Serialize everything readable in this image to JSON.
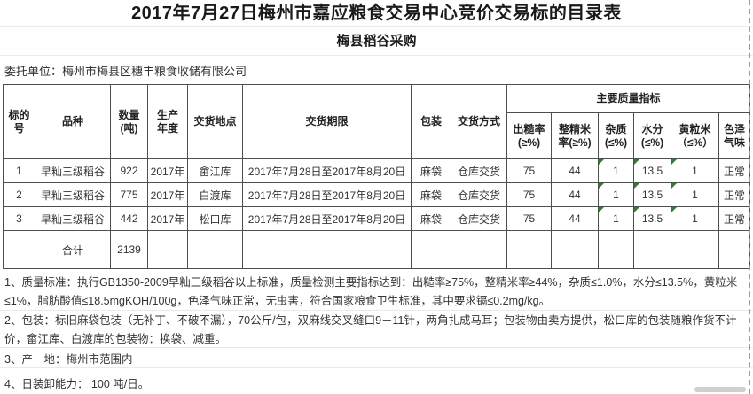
{
  "page": {
    "title": "2017年7月27日梅州市嘉应粮食交易中心竞价交易标的目录表",
    "subtitle": "梅县稻谷采购",
    "consignor": "委托单位：梅州市梅县区穗丰粮食收储有限公司"
  },
  "colors": {
    "table_border": "#4f4f4f",
    "flag_green": "#2e7d32",
    "faint_line": "#e9e9ee",
    "page_break_dash": "#9a9a9a",
    "scroll_thumb": "#cfcfcf"
  },
  "table": {
    "headers": {
      "bid_no": "标的\n号",
      "variety": "品种",
      "quantity": "数量\n(吨)",
      "year": "生产\n年度",
      "location": "交货地点",
      "period": "交货期限",
      "packaging": "包装",
      "delivery": "交货方式",
      "quality_group": "主要质量指标",
      "quality": [
        "出糙率\n(≥%)",
        "整精米\n率(≥%)",
        "杂质\n(≤%)",
        "水分\n(≤%)",
        "黄粒米\n（≤%）",
        "色泽\n气味"
      ]
    },
    "flag_cols": [
      10,
      11,
      12
    ],
    "rows": [
      {
        "c": [
          "1",
          "早籼三级稻谷",
          "922",
          "2017年",
          "畲江库",
          "2017年7月28日至2017年8月20日",
          "麻袋",
          "仓库交货",
          "75",
          "44",
          "1",
          "13.5",
          "1",
          "正常"
        ]
      },
      {
        "c": [
          "2",
          "早籼三级稻谷",
          "775",
          "2017年",
          "白渡库",
          "2017年7月28日至2017年8月20日",
          "麻袋",
          "仓库交货",
          "75",
          "44",
          "1",
          "13.5",
          "1",
          "正常"
        ]
      },
      {
        "c": [
          "3",
          "早籼三级稻谷",
          "442",
          "2017年",
          "松口库",
          "2017年7月28日至2017年8月20日",
          "麻袋",
          "仓库交货",
          "75",
          "44",
          "1",
          "13.5",
          "1",
          "正常"
        ]
      }
    ],
    "total": {
      "label": "合计",
      "quantity": "2139"
    }
  },
  "notes": [
    "1、质量标准：执行GB1350-2009早籼三级稻谷以上标准，质量检测主要指标达到：出糙率≥75%，整精米率≥44%，杂质≤1.0%，水分≤13.5%，黄粒米≤1%，脂肪酸值≤18.5mgKOH/100g，色泽气味正常，无虫害，符合国家粮食卫生标准，其中要求镉≤0.2mg/kg。",
    "2、包装：标旧麻袋包装（无补丁、不破不漏），70公斤/包，双麻线交叉缝口9－11针，两角扎成马耳；包装物由卖方提供，松口库的包装随粮作货不计价，畲江库、白渡库的包装物：换袋、减重。",
    "3、产　地：梅州市范围内",
    "4、日装卸能力：  100 吨/日。"
  ]
}
